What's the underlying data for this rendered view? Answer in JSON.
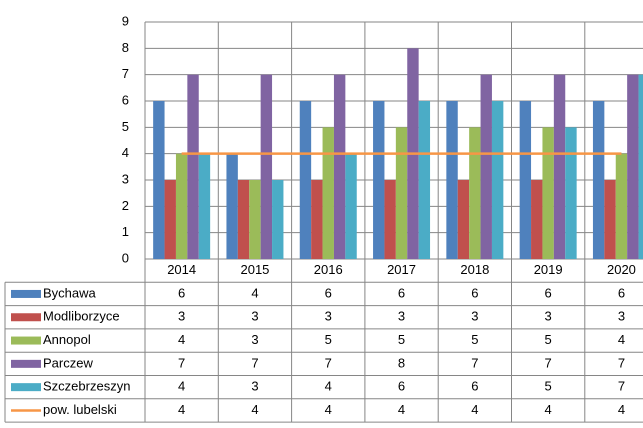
{
  "chart_data": {
    "type": "bar",
    "categories": [
      "2014",
      "2015",
      "2016",
      "2017",
      "2018",
      "2019",
      "2020"
    ],
    "series": [
      {
        "name": "Bychawa",
        "color": "#4f81bd",
        "values": [
          6,
          4,
          6,
          6,
          6,
          6,
          6
        ]
      },
      {
        "name": "Modliborzyce",
        "color": "#c0504d",
        "values": [
          3,
          3,
          3,
          3,
          3,
          3,
          3
        ]
      },
      {
        "name": "Annopol",
        "color": "#9bbb59",
        "values": [
          4,
          3,
          5,
          5,
          5,
          5,
          4
        ]
      },
      {
        "name": "Parczew",
        "color": "#8064a2",
        "values": [
          7,
          7,
          7,
          8,
          7,
          7,
          7
        ]
      },
      {
        "name": "Szczebrzeszyn",
        "color": "#4bacc6",
        "values": [
          4,
          3,
          4,
          6,
          6,
          5,
          7
        ]
      },
      {
        "name": "pow. lubelski",
        "color": "#f79646",
        "type": "line",
        "values": [
          4,
          4,
          4,
          4,
          4,
          4,
          4
        ]
      }
    ],
    "ylim": [
      0,
      9
    ],
    "yticks": [
      0,
      1,
      2,
      3,
      4,
      5,
      6,
      7,
      8,
      9
    ],
    "grid": true,
    "data_table": true
  }
}
